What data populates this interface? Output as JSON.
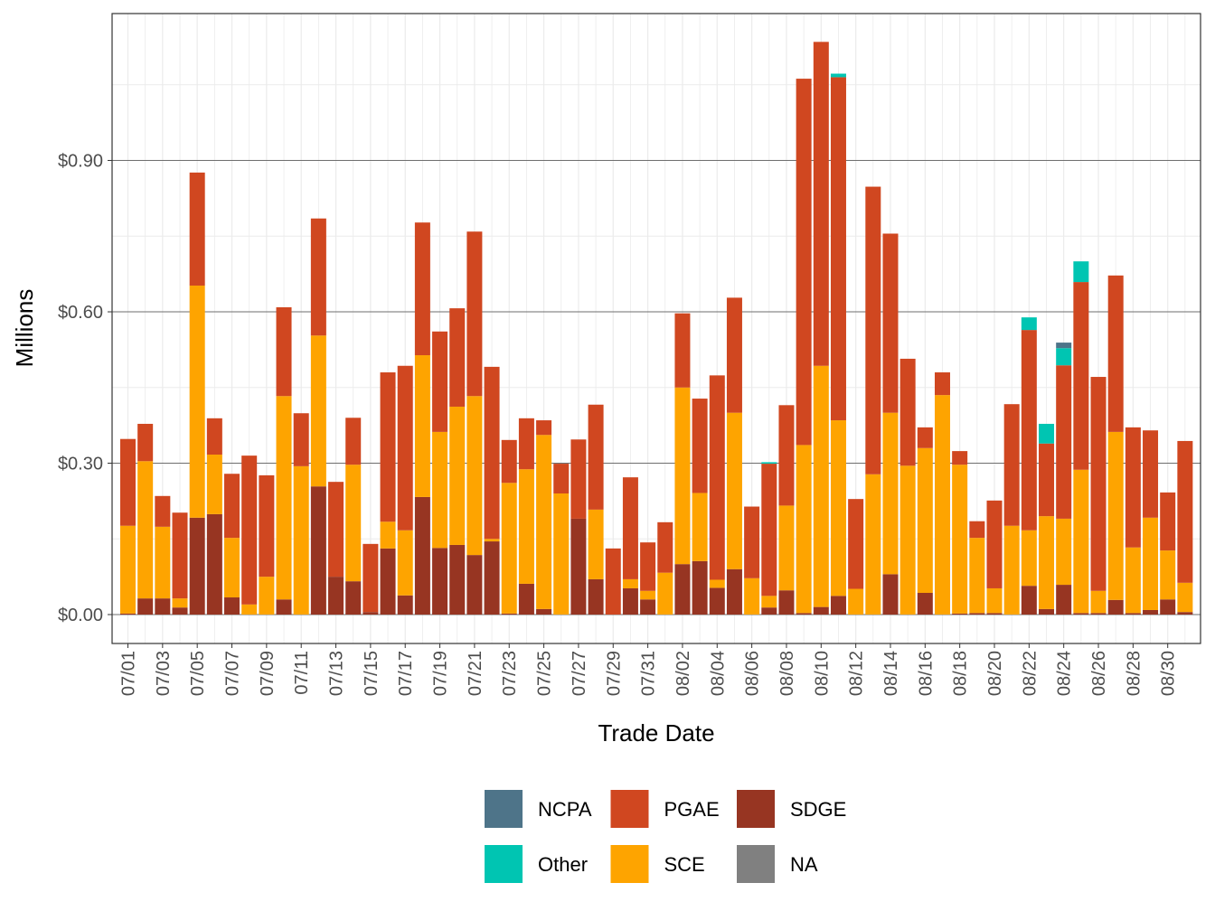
{
  "chart_data": {
    "type": "bar",
    "stacked": true,
    "xlabel": "Trade Date",
    "ylabel": "Millions",
    "ylim": [
      0,
      1.19
    ],
    "yticks": [
      0,
      0.3,
      0.6,
      0.9
    ],
    "ytick_labels": [
      "$0.00",
      "$0.30",
      "$0.60",
      "$0.90"
    ],
    "xtick_labels": [
      "07/01",
      "07/03",
      "07/05",
      "07/07",
      "07/09",
      "07/11",
      "07/13",
      "07/15",
      "07/17",
      "07/19",
      "07/21",
      "07/23",
      "07/25",
      "07/27",
      "07/29",
      "07/31",
      "08/02",
      "08/04",
      "08/06",
      "08/08",
      "08/10",
      "08/12",
      "08/14",
      "08/16",
      "08/18",
      "08/20",
      "08/22",
      "08/24",
      "08/26",
      "08/28",
      "08/30"
    ],
    "grid": true,
    "legend_position": "bottom",
    "categories": [
      "07/01",
      "07/02",
      "07/03",
      "07/04",
      "07/05",
      "07/06",
      "07/07",
      "07/08",
      "07/09",
      "07/10",
      "07/11",
      "07/12",
      "07/13",
      "07/14",
      "07/15",
      "07/16",
      "07/17",
      "07/18",
      "07/19",
      "07/20",
      "07/21",
      "07/22",
      "07/23",
      "07/24",
      "07/25",
      "07/26",
      "07/27",
      "07/28",
      "07/29",
      "07/30",
      "07/31",
      "08/01",
      "08/02",
      "08/03",
      "08/04",
      "08/05",
      "08/06",
      "08/07",
      "08/08",
      "08/09",
      "08/10",
      "08/11",
      "08/12",
      "08/13",
      "08/14",
      "08/15",
      "08/16",
      "08/17",
      "08/18",
      "08/19",
      "08/20",
      "08/21",
      "08/22",
      "08/23",
      "08/24",
      "08/25",
      "08/26",
      "08/27",
      "08/28",
      "08/29",
      "08/30",
      "08/31"
    ],
    "series": [
      {
        "name": "SDGE",
        "color": "#973522",
        "values": [
          0.002,
          0.032,
          0.032,
          0.014,
          0.192,
          0.199,
          0.034,
          0,
          0,
          0.03,
          0,
          0.254,
          0.075,
          0.066,
          0.005,
          0.131,
          0.038,
          0.233,
          0.132,
          0.138,
          0.118,
          0.145,
          0.002,
          0.061,
          0.011,
          0,
          0.19,
          0.07,
          0,
          0.052,
          0.03,
          0,
          0.1,
          0.106,
          0.053,
          0.09,
          0,
          0.014,
          0.048,
          0.003,
          0.015,
          0.037,
          0,
          0,
          0.08,
          0,
          0.043,
          0,
          0.002,
          0.003,
          0.003,
          0,
          0.057,
          0.011,
          0.059,
          0.003,
          0.003,
          0.029,
          0.003,
          0.009,
          0.03,
          0.005
        ]
      },
      {
        "name": "SCE",
        "color": "#fea400",
        "values": [
          0.174,
          0.272,
          0.142,
          0.018,
          0.46,
          0.118,
          0.118,
          0.02,
          0.075,
          0.403,
          0.294,
          0.299,
          0,
          0.231,
          0,
          0.053,
          0.129,
          0.281,
          0.23,
          0.274,
          0.315,
          0.005,
          0.259,
          0.227,
          0.345,
          0.24,
          0,
          0.138,
          0,
          0.018,
          0.017,
          0.083,
          0.35,
          0.135,
          0.016,
          0.31,
          0.072,
          0.023,
          0.168,
          0.333,
          0.478,
          0.348,
          0.051,
          0.278,
          0.32,
          0.295,
          0.287,
          0.435,
          0.295,
          0.149,
          0.049,
          0.176,
          0.11,
          0.184,
          0.131,
          0.284,
          0.044,
          0.333,
          0.13,
          0.183,
          0.097,
          0.058
        ]
      },
      {
        "name": "PGAE",
        "color": "#d04720",
        "values": [
          0.172,
          0.074,
          0.061,
          0.17,
          0.224,
          0.072,
          0.127,
          0.295,
          0.201,
          0.176,
          0.105,
          0.232,
          0.188,
          0.093,
          0.135,
          0.296,
          0.326,
          0.263,
          0.199,
          0.195,
          0.326,
          0.341,
          0.085,
          0.101,
          0.029,
          0.059,
          0.157,
          0.208,
          0.131,
          0.202,
          0.096,
          0.1,
          0.147,
          0.187,
          0.405,
          0.228,
          0.142,
          0.262,
          0.199,
          0.726,
          0.642,
          0.68,
          0.178,
          0.57,
          0.355,
          0.212,
          0.041,
          0.045,
          0.027,
          0.033,
          0.174,
          0.241,
          0.397,
          0.144,
          0.304,
          0.372,
          0.424,
          0.31,
          0.238,
          0.173,
          0.115,
          0.281
        ]
      },
      {
        "name": "Other",
        "color": "#00c5b2",
        "values": [
          0,
          0,
          0,
          0,
          0,
          0,
          0,
          0,
          0,
          0,
          0,
          0,
          0,
          0,
          0,
          0,
          0,
          0,
          0,
          0,
          0,
          0,
          0,
          0,
          0,
          0,
          0,
          0,
          0,
          0,
          0,
          0,
          0,
          0,
          0,
          0,
          0,
          0.003,
          0,
          0,
          0,
          0.007,
          0,
          0,
          0,
          0,
          0,
          0,
          0,
          0,
          0,
          0,
          0.025,
          0.039,
          0.034,
          0.041,
          0,
          0,
          0,
          0,
          0,
          0
        ]
      },
      {
        "name": "NCPA",
        "color": "#4e7489",
        "values": [
          0,
          0,
          0,
          0,
          0,
          0,
          0,
          0,
          0,
          0,
          0,
          0,
          0,
          0,
          0,
          0,
          0,
          0,
          0,
          0,
          0,
          0,
          0,
          0,
          0,
          0,
          0,
          0,
          0,
          0,
          0,
          0,
          0,
          0,
          0,
          0,
          0,
          0,
          0,
          0,
          0,
          0,
          0,
          0,
          0,
          0,
          0,
          0,
          0,
          0,
          0,
          0,
          0,
          0,
          0.011,
          0,
          0,
          0,
          0,
          0,
          0,
          0
        ]
      }
    ],
    "legend": [
      {
        "name": "NCPA",
        "color": "#4e7489"
      },
      {
        "name": "PGAE",
        "color": "#d04720"
      },
      {
        "name": "SDGE",
        "color": "#973522"
      },
      {
        "name": "Other",
        "color": "#00c5b2"
      },
      {
        "name": "SCE",
        "color": "#fea400"
      },
      {
        "name": "NA",
        "color": "#808080"
      }
    ]
  }
}
